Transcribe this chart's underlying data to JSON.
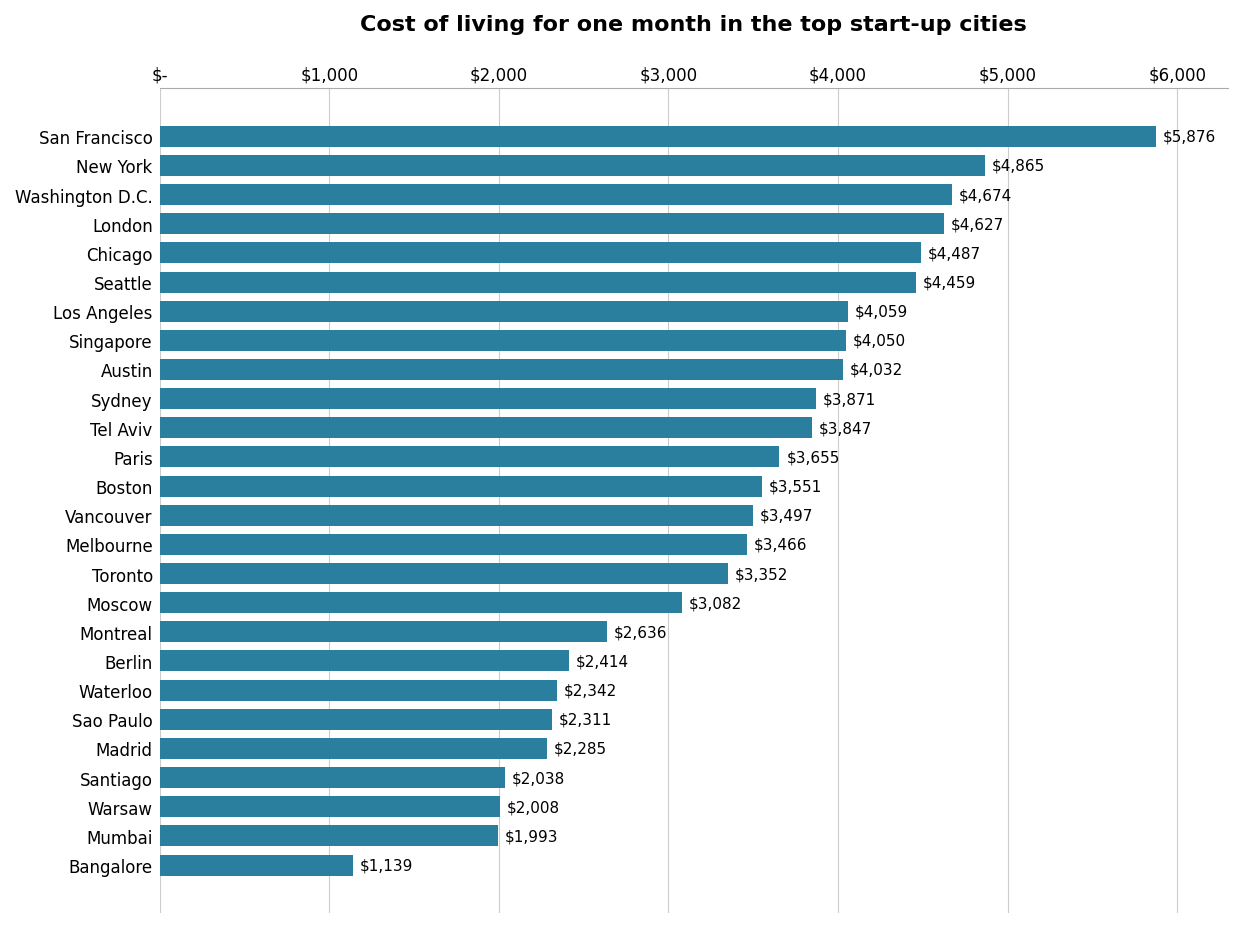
{
  "title": "Cost of living for one month in the top start-up cities",
  "cities": [
    "San Francisco",
    "New York",
    "Washington D.C.",
    "London",
    "Chicago",
    "Seattle",
    "Los Angeles",
    "Singapore",
    "Austin",
    "Sydney",
    "Tel Aviv",
    "Paris",
    "Boston",
    "Vancouver",
    "Melbourne",
    "Toronto",
    "Moscow",
    "Montreal",
    "Berlin",
    "Waterloo",
    "Sao Paulo",
    "Madrid",
    "Santiago",
    "Warsaw",
    "Mumbai",
    "Bangalore"
  ],
  "values": [
    5876,
    4865,
    4674,
    4627,
    4487,
    4459,
    4059,
    4050,
    4032,
    3871,
    3847,
    3655,
    3551,
    3497,
    3466,
    3352,
    3082,
    2636,
    2414,
    2342,
    2311,
    2285,
    2038,
    2008,
    1993,
    1139
  ],
  "bar_color": "#2a7f9e",
  "background_color": "#ffffff",
  "label_color": "#000000",
  "title_fontsize": 16,
  "tick_fontsize": 12,
  "label_fontsize": 12,
  "xlim": [
    0,
    6300
  ],
  "xticks": [
    0,
    1000,
    2000,
    3000,
    4000,
    5000,
    6000
  ],
  "xtick_labels": [
    "$-",
    "$1,000",
    "$2,000",
    "$3,000",
    "$4,000",
    "$5,000",
    "$6,000"
  ]
}
